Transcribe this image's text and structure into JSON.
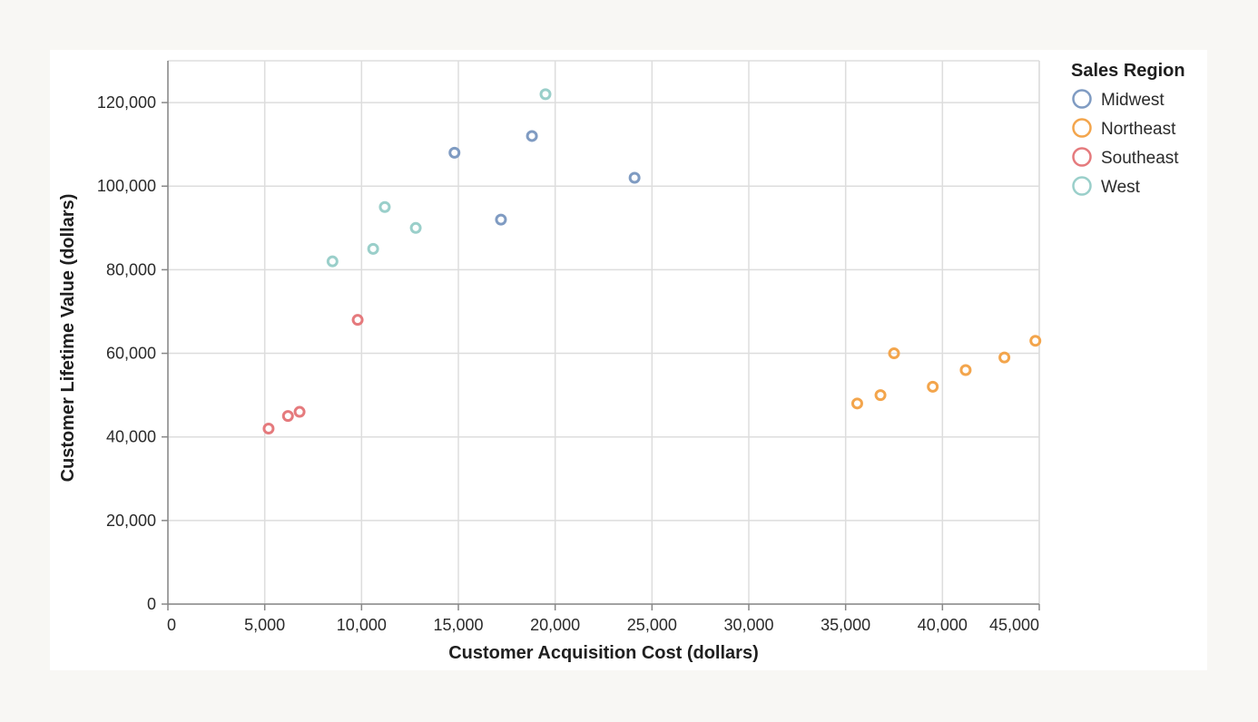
{
  "chart_data": {
    "type": "scatter",
    "xlabel": "Customer Acquisition Cost (dollars)",
    "ylabel": "Customer Lifetime Value (dollars)",
    "xlim": [
      0,
      45000
    ],
    "ylim": [
      0,
      130000
    ],
    "x_ticks": [
      0,
      5000,
      10000,
      15000,
      20000,
      25000,
      30000,
      35000,
      40000,
      45000
    ],
    "x_tick_labels": [
      "0",
      "5,000",
      "10,000",
      "15,000",
      "20,000",
      "25,000",
      "30,000",
      "35,000",
      "40,000",
      "45,000"
    ],
    "y_ticks": [
      0,
      20000,
      40000,
      60000,
      80000,
      100000,
      120000
    ],
    "y_tick_labels": [
      "0",
      "20,000",
      "40,000",
      "60,000",
      "80,000",
      "100,000",
      "120,000"
    ],
    "grid": true,
    "legend": {
      "title": "Sales Region",
      "placement": "right"
    },
    "series": [
      {
        "name": "Midwest",
        "color": "#7f9bc2",
        "points": [
          {
            "x": 14800,
            "y": 108000
          },
          {
            "x": 17200,
            "y": 92000
          },
          {
            "x": 18800,
            "y": 112000
          },
          {
            "x": 24100,
            "y": 102000
          }
        ]
      },
      {
        "name": "Northeast",
        "color": "#f3a54c",
        "points": [
          {
            "x": 35600,
            "y": 48000
          },
          {
            "x": 36800,
            "y": 50000
          },
          {
            "x": 37500,
            "y": 60000
          },
          {
            "x": 39500,
            "y": 52000
          },
          {
            "x": 41200,
            "y": 56000
          },
          {
            "x": 43200,
            "y": 59000
          },
          {
            "x": 44800,
            "y": 63000
          }
        ]
      },
      {
        "name": "Southeast",
        "color": "#e57a7d",
        "points": [
          {
            "x": 5200,
            "y": 42000
          },
          {
            "x": 6200,
            "y": 45000
          },
          {
            "x": 6800,
            "y": 46000
          },
          {
            "x": 9800,
            "y": 68000
          }
        ]
      },
      {
        "name": "West",
        "color": "#9acfca",
        "points": [
          {
            "x": 8500,
            "y": 82000
          },
          {
            "x": 10600,
            "y": 85000
          },
          {
            "x": 11200,
            "y": 95000
          },
          {
            "x": 12800,
            "y": 90000
          },
          {
            "x": 19500,
            "y": 122000
          }
        ]
      }
    ]
  }
}
